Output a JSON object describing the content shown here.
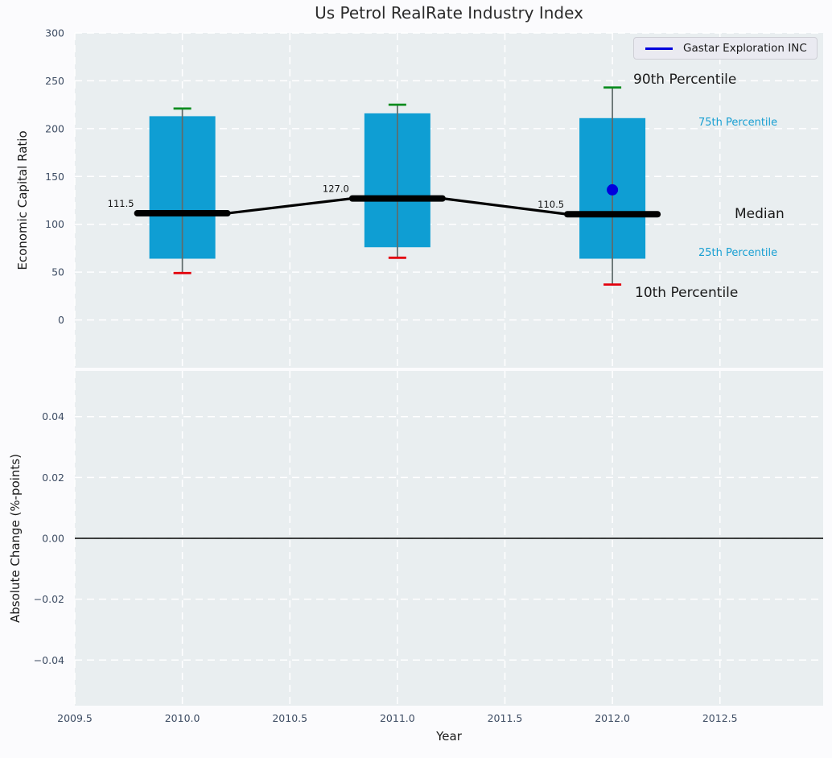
{
  "legend": {
    "label": "Gastar Exploration INC"
  },
  "chart_data": {
    "type": "box",
    "title": "Us Petrol RealRate Industry Index",
    "xlabel": "Year",
    "x_axis": {
      "tick_values": [
        2009.5,
        2010.0,
        2010.5,
        2011.0,
        2011.5,
        2012.0,
        2012.5
      ],
      "tick_labels": [
        "2009.5",
        "2010.0",
        "2010.5",
        "2011.0",
        "2011.5",
        "2012.0",
        "2012.5"
      ],
      "xlim": [
        2009.5,
        2012.98
      ]
    },
    "top_panel": {
      "ylabel": "Economic Capital Ratio",
      "ylim": [
        -50,
        300
      ],
      "ytick_values": [
        0,
        50,
        100,
        150,
        200,
        250,
        300
      ],
      "ytick_labels": [
        "0",
        "50",
        "100",
        "150",
        "200",
        "250",
        "300"
      ],
      "grid": true
    },
    "bottom_panel": {
      "ylabel": "Absolute Change (%-points)",
      "ylim": [
        -0.055,
        0.055
      ],
      "ytick_values": [
        0.04,
        0.02,
        0.0,
        -0.02,
        -0.04
      ],
      "ytick_labels": [
        "0.04",
        "0.02",
        "0.00",
        "−0.02",
        "−0.04"
      ],
      "zero_line": 0.0,
      "grid": true
    },
    "boxes": [
      {
        "year": 2010,
        "p10": 49,
        "p25": 64,
        "median": 111.5,
        "p75": 213,
        "p90": 221,
        "median_label": "111.5"
      },
      {
        "year": 2011,
        "p10": 65,
        "p25": 76,
        "median": 127.0,
        "p75": 216,
        "p90": 225,
        "median_label": "127.0"
      },
      {
        "year": 2012,
        "p10": 37,
        "p25": 64,
        "median": 110.5,
        "p75": 211,
        "p90": 243,
        "median_label": "110.5"
      }
    ],
    "company_point": {
      "series": "Gastar Exploration INC",
      "year": 2012,
      "value": 136
    },
    "percentile_labels": {
      "p90": "90th Percentile",
      "p75": "75th Percentile",
      "median": "Median",
      "p25": "25th Percentile",
      "p10": "10th Percentile"
    },
    "colors": {
      "box_fill": "#0f9ed3",
      "whisker": "#5f6b6b",
      "cap_top": "#0a8c1e",
      "cap_bottom": "#e3000e",
      "median_line": "#000000",
      "company": "#0000dd",
      "annotation_cyan": "#189fd2",
      "panel_bg": "#e9eef0",
      "grid": "#ffffff",
      "tick_text": "#3d4c63",
      "axis_text": "#1a1a1a",
      "title_text": "#2b2b2b"
    }
  }
}
